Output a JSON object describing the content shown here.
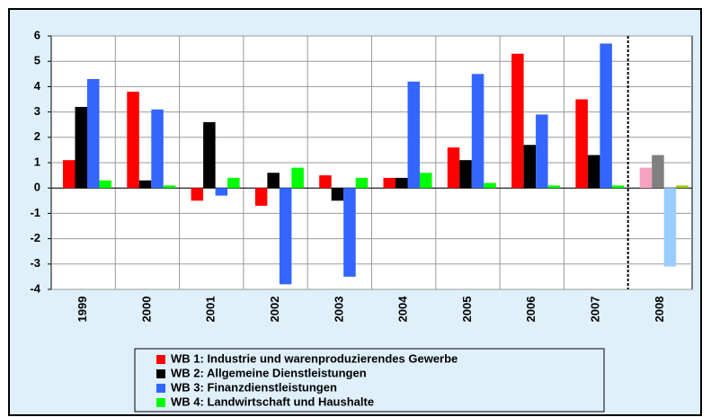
{
  "chart_data": {
    "type": "bar",
    "categories": [
      "1999",
      "2000",
      "2001",
      "2002",
      "2003",
      "2004",
      "2005",
      "2006",
      "2007",
      "2008"
    ],
    "series": [
      {
        "name": "WB 1: Industrie und warenproduzierendes Gewerbe",
        "color": "#ff0000",
        "forecast_color": "#f7a1c0",
        "values": [
          1.1,
          3.8,
          -0.5,
          -0.7,
          0.5,
          0.4,
          1.6,
          5.3,
          3.5,
          0.8
        ]
      },
      {
        "name": "WB 2: Allgemeine Dienstleistungen",
        "color": "#000000",
        "forecast_color": "#808080",
        "values": [
          3.2,
          0.3,
          2.6,
          0.6,
          -0.5,
          0.4,
          1.1,
          1.7,
          1.3,
          1.3
        ]
      },
      {
        "name": "WB 3: Finanzdienstleistungen",
        "color": "#3366ff",
        "forecast_color": "#99ccff",
        "values": [
          4.3,
          3.1,
          -0.3,
          -3.8,
          -3.5,
          4.2,
          4.5,
          2.9,
          5.7,
          -3.1
        ]
      },
      {
        "name": "WB 4: Landwirtschaft und Haushalte",
        "color": "#00ff00",
        "forecast_color": "#99cc00",
        "values": [
          0.3,
          0.1,
          0.4,
          0.8,
          0.4,
          0.6,
          0.2,
          0.1,
          0.1,
          0.1
        ]
      }
    ],
    "forecast_categories": [
      "2008"
    ],
    "ylim": [
      -4,
      6
    ],
    "yticks": [
      -4,
      -3,
      -2,
      -1,
      0,
      1,
      2,
      3,
      4,
      5,
      6
    ],
    "grid": true
  }
}
